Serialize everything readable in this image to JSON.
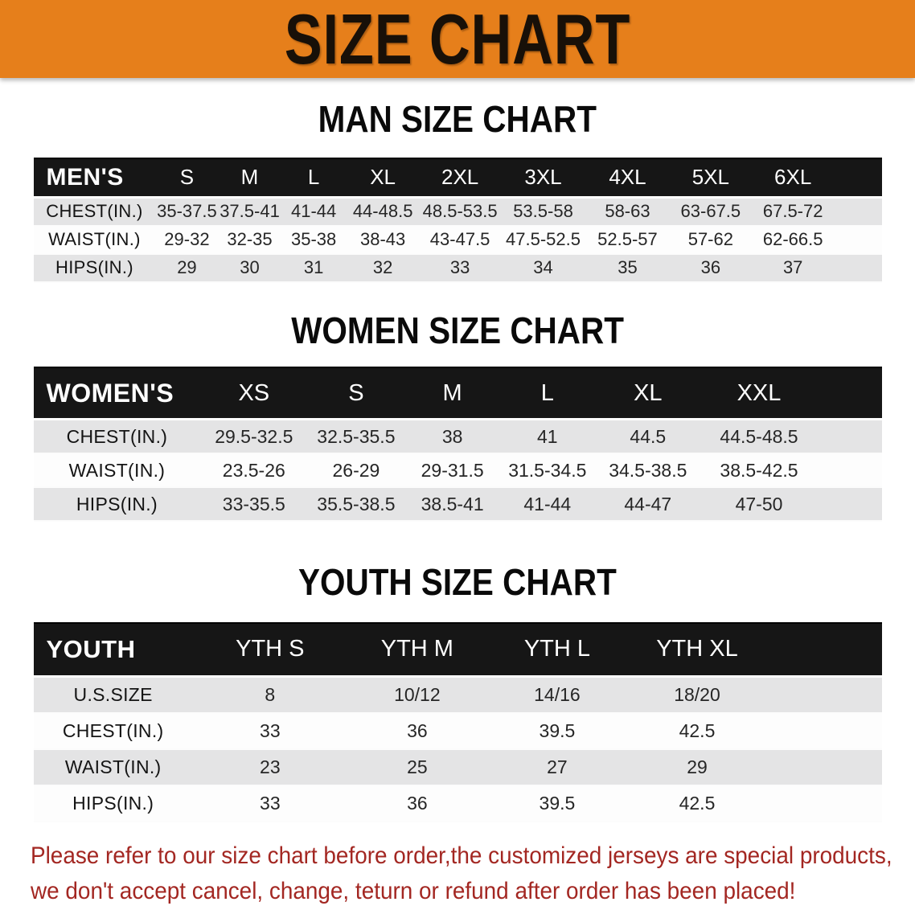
{
  "banner": {
    "title": "SIZE CHART"
  },
  "colors": {
    "banner_orange": "#E67F1B",
    "header_band_black": "#161616",
    "row_gray": "#E4E4E5",
    "disclaimer_red": "#A32722"
  },
  "men": {
    "heading": "MAN SIZE CHART",
    "label": "MEN'S",
    "sizes": [
      "S",
      "M",
      "L",
      "XL",
      "2XL",
      "3XL",
      "4XL",
      "5XL",
      "6XL"
    ],
    "rows": [
      {
        "label": "CHEST(IN.)",
        "values": [
          "35-37.5",
          "37.5-41",
          "41-44",
          "44-48.5",
          "48.5-53.5",
          "53.5-58",
          "58-63",
          "63-67.5",
          "67.5-72"
        ]
      },
      {
        "label": "WAIST(IN.)",
        "values": [
          "29-32",
          "32-35",
          "35-38",
          "38-43",
          "43-47.5",
          "47.5-52.5",
          "52.5-57",
          "57-62",
          "62-66.5"
        ]
      },
      {
        "label": "HIPS(IN.)",
        "values": [
          "29",
          "30",
          "31",
          "32",
          "33",
          "34",
          "35",
          "36",
          "37"
        ]
      }
    ]
  },
  "women": {
    "heading": "WOMEN SIZE CHART",
    "label": "WOMEN'S",
    "sizes": [
      "XS",
      "S",
      "M",
      "L",
      "XL",
      "XXL"
    ],
    "rows": [
      {
        "label": "CHEST(IN.)",
        "values": [
          "29.5-32.5",
          "32.5-35.5",
          "38",
          "41",
          "44.5",
          "44.5-48.5"
        ]
      },
      {
        "label": "WAIST(IN.)",
        "values": [
          "23.5-26",
          "26-29",
          "29-31.5",
          "31.5-34.5",
          "34.5-38.5",
          "38.5-42.5"
        ]
      },
      {
        "label": "HIPS(IN.)",
        "values": [
          "33-35.5",
          "35.5-38.5",
          "38.5-41",
          "41-44",
          "44-47",
          "47-50"
        ]
      }
    ]
  },
  "youth": {
    "heading": "YOUTH SIZE CHART",
    "label": "YOUTH",
    "sizes": [
      "YTH S",
      "YTH M",
      "YTH L",
      "YTH XL"
    ],
    "rows": [
      {
        "label": "U.S.SIZE",
        "values": [
          "8",
          "10/12",
          "14/16",
          "18/20"
        ]
      },
      {
        "label": "CHEST(IN.)",
        "values": [
          "33",
          "36",
          "39.5",
          "42.5"
        ]
      },
      {
        "label": "WAIST(IN.)",
        "values": [
          "23",
          "25",
          "27",
          "29"
        ]
      },
      {
        "label": "HIPS(IN.)",
        "values": [
          "33",
          "36",
          "39.5",
          "42.5"
        ]
      }
    ]
  },
  "disclaimer": {
    "line1": "Please refer to our size chart before order,the customized jerseys are special products,",
    "line2": "we don't accept cancel, change, teturn or refund after order has been placed!"
  }
}
